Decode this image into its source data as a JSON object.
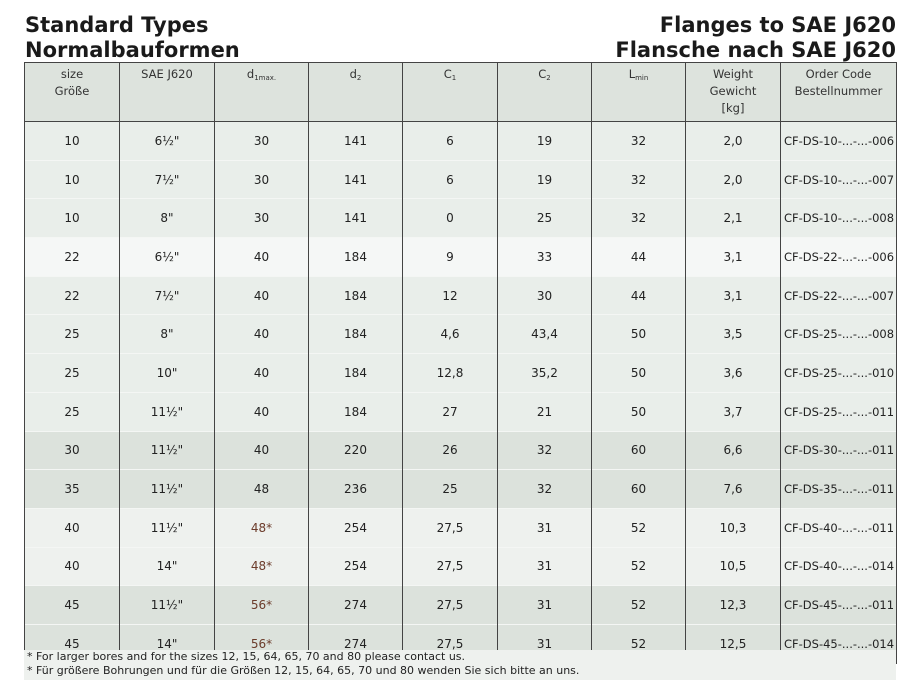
{
  "title_left": [
    "Standard Types",
    "Normalbauformen"
  ],
  "title_right": [
    "Flanges to SAE J620",
    "Flansche nach SAE J620"
  ],
  "headers": [
    {
      "l1": "size",
      "l2": "Größe"
    },
    {
      "l1": "SAE J620"
    },
    {
      "main": "d",
      "sub": "1max."
    },
    {
      "main": "d",
      "sub": "2"
    },
    {
      "main": "C",
      "sub": "1"
    },
    {
      "main": "C",
      "sub": "2"
    },
    {
      "main": "L",
      "sub": "min"
    },
    {
      "l1": "Weight",
      "l2": "Gewicht",
      "l3": "[kg]"
    },
    {
      "l1": "Order Code",
      "l2": "Bestellnummer"
    }
  ],
  "rows": [
    [
      "10",
      "6½\"",
      "30",
      "141",
      "6",
      "19",
      "32",
      "2,0",
      "CF-DS-10-...-...-006"
    ],
    [
      "10",
      "7½\"",
      "30",
      "141",
      "6",
      "19",
      "32",
      "2,0",
      "CF-DS-10-...-...-007"
    ],
    [
      "10",
      "8\"",
      "30",
      "141",
      "0",
      "25",
      "32",
      "2,1",
      "CF-DS-10-...-...-008"
    ],
    [
      "22",
      "6½\"",
      "40",
      "184",
      "9",
      "33",
      "44",
      "3,1",
      "CF-DS-22-...-...-006"
    ],
    [
      "22",
      "7½\"",
      "40",
      "184",
      "12",
      "30",
      "44",
      "3,1",
      "CF-DS-22-...-...-007"
    ],
    [
      "25",
      "8\"",
      "40",
      "184",
      "4,6",
      "43,4",
      "50",
      "3,5",
      "CF-DS-25-...-...-008"
    ],
    [
      "25",
      "10\"",
      "40",
      "184",
      "12,8",
      "35,2",
      "50",
      "3,6",
      "CF-DS-25-...-...-010"
    ],
    [
      "25",
      "11½\"",
      "40",
      "184",
      "27",
      "21",
      "50",
      "3,7",
      "CF-DS-25-...-...-011"
    ],
    [
      "30",
      "11½\"",
      "40",
      "220",
      "26",
      "32",
      "60",
      "6,6",
      "CF-DS-30-...-...-011"
    ],
    [
      "35",
      "11½\"",
      "48",
      "236",
      "25",
      "32",
      "60",
      "7,6",
      "CF-DS-35-...-...-011"
    ],
    [
      "40",
      "11½\"",
      "48*",
      "254",
      "27,5",
      "31",
      "52",
      "10,3",
      "CF-DS-40-...-...-011"
    ],
    [
      "40",
      "14\"",
      "48*",
      "254",
      "27,5",
      "31",
      "52",
      "10,5",
      "CF-DS-40-...-...-014"
    ],
    [
      "45",
      "11½\"",
      "56*",
      "274",
      "27,5",
      "31",
      "52",
      "12,3",
      "CF-DS-45-...-...-011"
    ],
    [
      "45",
      "14\"",
      "56*",
      "274",
      "27,5",
      "31",
      "52",
      "12,5",
      "CF-DS-45-...-...-014"
    ]
  ],
  "footnotes": [
    "* For larger bores and for the sizes 12, 15, 64, 65, 70 and 80 please contact us.",
    "* Für größere Bohrungen und für die Größen 12, 15, 64, 65, 70 und 80 wenden Sie sich bitte an uns."
  ],
  "colors": {
    "header_bg": "#dde3dd",
    "asterisk_text": "#6b3b2a"
  }
}
